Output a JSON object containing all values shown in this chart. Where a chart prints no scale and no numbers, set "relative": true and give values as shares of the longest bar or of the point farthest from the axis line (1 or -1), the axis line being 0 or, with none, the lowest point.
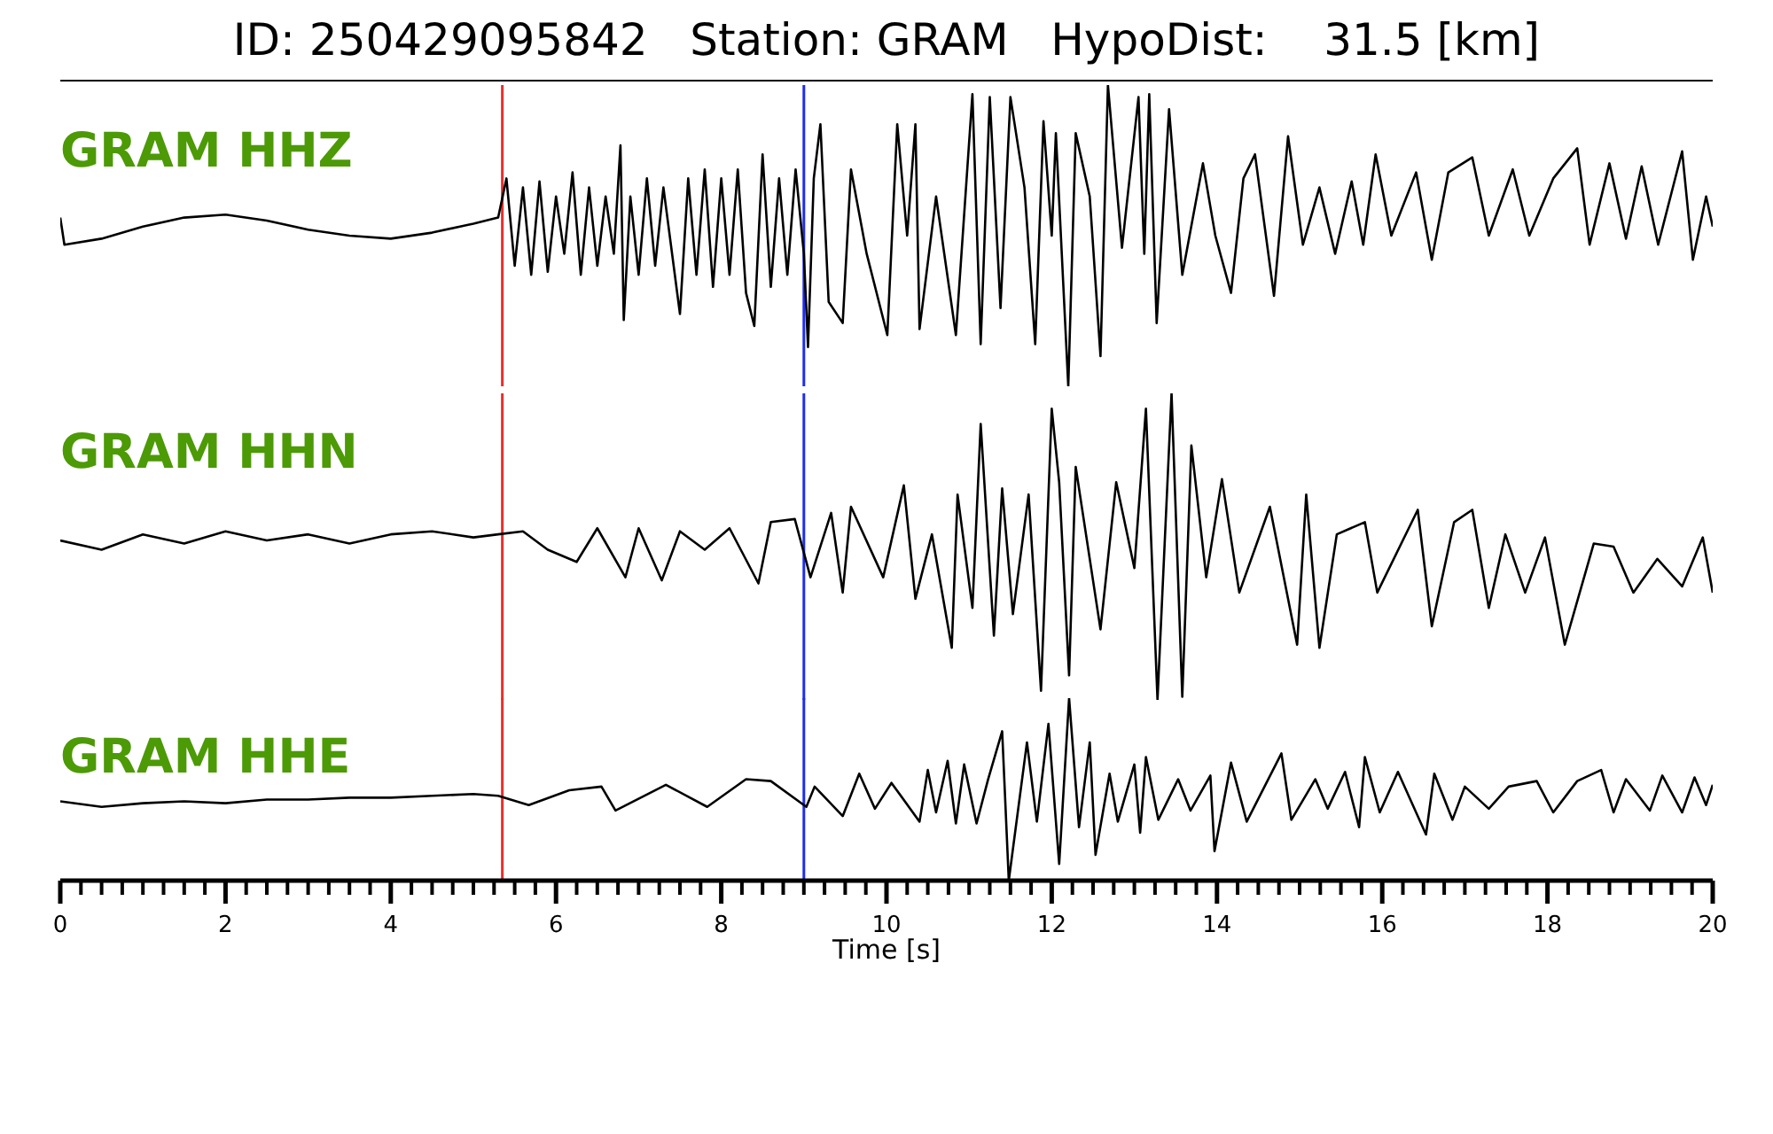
{
  "chart_data": [
    {
      "type": "line",
      "title": "ID: 250429095842   Station: GRAM   HypoDist:    31.5 [km]",
      "annotations": [
        "GRAM HHZ"
      ],
      "relative": true,
      "xlim": [
        0,
        20
      ],
      "tick_labels": false,
      "ref_lines": [
        {
          "axis": "x",
          "value": 5.35,
          "color": "#e8302a"
        },
        {
          "axis": "x",
          "value": 9.0,
          "color": "#1f2cf0"
        }
      ],
      "series": [
        {
          "color": "#000000",
          "x": [
            0,
            0.05,
            0.5,
            1,
            1.5,
            2,
            2.5,
            3,
            3.5,
            4,
            4.5,
            5,
            5.3,
            5.4,
            5.5,
            5.6,
            5.7,
            5.8,
            5.9,
            6.0,
            6.1,
            6.2,
            6.3,
            6.4,
            6.5,
            6.6,
            6.7,
            6.78,
            6.82,
            6.9,
            7.0,
            7.1,
            7.2,
            7.3,
            7.5,
            7.6,
            7.7,
            7.8,
            7.9,
            8.0,
            8.1,
            8.2,
            8.3,
            8.4,
            8.5,
            8.6,
            8.7,
            8.8,
            8.9,
            9.0,
            9.05,
            9.12,
            9.2,
            9.3,
            9.47,
            9.57,
            9.76,
            10.01,
            10.13,
            10.25,
            10.35,
            10.4,
            10.6,
            10.84,
            11.04,
            11.14,
            11.25,
            11.38,
            11.5,
            11.67,
            11.8,
            11.9,
            12.0,
            12.05,
            12.2,
            12.29,
            12.46,
            12.59,
            12.68,
            12.85,
            13.05,
            13.12,
            13.18,
            13.27,
            13.42,
            13.58,
            13.83,
            13.98,
            14.17,
            14.32,
            14.46,
            14.69,
            14.86,
            15.04,
            15.24,
            15.43,
            15.63,
            15.77,
            15.92,
            16.11,
            16.41,
            16.6,
            16.8,
            17.09,
            17.29,
            17.58,
            17.78,
            18.07,
            18.36,
            18.51,
            18.75,
            18.95,
            19.14,
            19.34,
            19.63,
            19.76,
            19.92,
            20.0
          ],
          "values": [
            0.56,
            0.47,
            0.49,
            0.53,
            0.56,
            0.57,
            0.55,
            0.52,
            0.5,
            0.49,
            0.51,
            0.54,
            0.56,
            0.69,
            0.4,
            0.66,
            0.37,
            0.68,
            0.38,
            0.63,
            0.44,
            0.71,
            0.37,
            0.66,
            0.4,
            0.63,
            0.44,
            0.8,
            0.22,
            0.63,
            0.37,
            0.69,
            0.4,
            0.66,
            0.24,
            0.69,
            0.37,
            0.72,
            0.33,
            0.69,
            0.37,
            0.72,
            0.31,
            0.2,
            0.77,
            0.33,
            0.69,
            0.37,
            0.72,
            0.44,
            0.13,
            0.69,
            0.87,
            0.28,
            0.21,
            0.72,
            0.44,
            0.17,
            0.87,
            0.5,
            0.87,
            0.19,
            0.63,
            0.17,
            0.97,
            0.14,
            0.96,
            0.26,
            0.96,
            0.66,
            0.14,
            0.88,
            0.5,
            0.84,
            0.0,
            0.84,
            0.63,
            0.1,
            1.0,
            0.46,
            0.96,
            0.44,
            0.97,
            0.21,
            0.92,
            0.37,
            0.74,
            0.5,
            0.31,
            0.69,
            0.77,
            0.3,
            0.83,
            0.47,
            0.66,
            0.44,
            0.68,
            0.47,
            0.77,
            0.5,
            0.71,
            0.42,
            0.71,
            0.76,
            0.5,
            0.72,
            0.5,
            0.69,
            0.79,
            0.47,
            0.74,
            0.49,
            0.73,
            0.47,
            0.78,
            0.42,
            0.63,
            0.53
          ]
        }
      ]
    },
    {
      "type": "line",
      "annotations": [
        "GRAM HHN"
      ],
      "relative": true,
      "xlim": [
        0,
        20
      ],
      "tick_labels": false,
      "ref_lines": [
        {
          "axis": "x",
          "value": 5.35,
          "color": "#e8302a"
        },
        {
          "axis": "x",
          "value": 9.0,
          "color": "#1f2cf0"
        }
      ],
      "series": [
        {
          "color": "#000000",
          "x": [
            0,
            0.5,
            1,
            1.5,
            2,
            2.5,
            3,
            3.5,
            4,
            4.5,
            5,
            5.3,
            5.6,
            5.9,
            6.25,
            6.5,
            6.84,
            7.0,
            7.28,
            7.5,
            7.8,
            8.1,
            8.45,
            8.6,
            8.89,
            9.08,
            9.33,
            9.47,
            9.57,
            9.96,
            10.21,
            10.35,
            10.55,
            10.79,
            10.86,
            11.04,
            11.14,
            11.3,
            11.4,
            11.53,
            11.72,
            11.87,
            12.0,
            12.09,
            12.21,
            12.29,
            12.59,
            12.78,
            13.0,
            13.14,
            13.28,
            13.45,
            13.58,
            13.69,
            13.87,
            14.06,
            14.27,
            14.64,
            14.97,
            15.08,
            15.24,
            15.45,
            15.79,
            15.94,
            16.43,
            16.6,
            16.87,
            17.09,
            17.29,
            17.49,
            17.73,
            17.97,
            18.21,
            18.56,
            18.8,
            19.04,
            19.33,
            19.63,
            19.88,
            20.0
          ],
          "values": [
            0.52,
            0.49,
            0.54,
            0.51,
            0.55,
            0.52,
            0.54,
            0.51,
            0.54,
            0.55,
            0.53,
            0.54,
            0.55,
            0.49,
            0.45,
            0.56,
            0.4,
            0.56,
            0.39,
            0.55,
            0.49,
            0.56,
            0.38,
            0.58,
            0.59,
            0.4,
            0.61,
            0.35,
            0.63,
            0.4,
            0.7,
            0.33,
            0.54,
            0.17,
            0.67,
            0.3,
            0.9,
            0.21,
            0.69,
            0.28,
            0.67,
            0.03,
            0.95,
            0.71,
            0.08,
            0.76,
            0.23,
            0.71,
            0.43,
            0.95,
            0.0,
            1.0,
            0.01,
            0.83,
            0.4,
            0.72,
            0.35,
            0.63,
            0.18,
            0.67,
            0.17,
            0.54,
            0.58,
            0.35,
            0.62,
            0.24,
            0.58,
            0.62,
            0.3,
            0.54,
            0.35,
            0.53,
            0.18,
            0.51,
            0.5,
            0.35,
            0.46,
            0.37,
            0.53,
            0.35
          ]
        }
      ]
    },
    {
      "type": "line",
      "annotations": [
        "GRAM HHE"
      ],
      "relative": true,
      "xlim": [
        0,
        20
      ],
      "xlabel": "Time [s]",
      "xticks": [
        0,
        {
          "value": 0.25,
          "label": null
        },
        {
          "value": 0.5,
          "label": null
        },
        {
          "value": 0.75,
          "label": null
        },
        {
          "value": 1,
          "label": null
        },
        {
          "value": 1.25,
          "label": null
        },
        {
          "value": 1.5,
          "label": null
        },
        {
          "value": 1.75,
          "label": null
        },
        2,
        {
          "value": 2.25,
          "label": null
        },
        {
          "value": 2.5,
          "label": null
        },
        {
          "value": 2.75,
          "label": null
        },
        {
          "value": 3,
          "label": null
        },
        {
          "value": 3.25,
          "label": null
        },
        {
          "value": 3.5,
          "label": null
        },
        {
          "value": 3.75,
          "label": null
        },
        4,
        {
          "value": 4.25,
          "label": null
        },
        {
          "value": 4.5,
          "label": null
        },
        {
          "value": 4.75,
          "label": null
        },
        {
          "value": 5,
          "label": null
        },
        {
          "value": 5.25,
          "label": null
        },
        {
          "value": 5.5,
          "label": null
        },
        {
          "value": 5.75,
          "label": null
        },
        6,
        {
          "value": 6.25,
          "label": null
        },
        {
          "value": 6.5,
          "label": null
        },
        {
          "value": 6.75,
          "label": null
        },
        {
          "value": 7,
          "label": null
        },
        {
          "value": 7.25,
          "label": null
        },
        {
          "value": 7.5,
          "label": null
        },
        {
          "value": 7.75,
          "label": null
        },
        8,
        {
          "value": 8.25,
          "label": null
        },
        {
          "value": 8.5,
          "label": null
        },
        {
          "value": 8.75,
          "label": null
        },
        {
          "value": 9,
          "label": null
        },
        {
          "value": 9.25,
          "label": null
        },
        {
          "value": 9.5,
          "label": null
        },
        {
          "value": 9.75,
          "label": null
        },
        10,
        {
          "value": 10.25,
          "label": null
        },
        {
          "value": 10.5,
          "label": null
        },
        {
          "value": 10.75,
          "label": null
        },
        {
          "value": 11,
          "label": null
        },
        {
          "value": 11.25,
          "label": null
        },
        {
          "value": 11.5,
          "label": null
        },
        {
          "value": 11.75,
          "label": null
        },
        12,
        {
          "value": 12.25,
          "label": null
        },
        {
          "value": 12.5,
          "label": null
        },
        {
          "value": 12.75,
          "label": null
        },
        {
          "value": 13,
          "label": null
        },
        {
          "value": 13.25,
          "label": null
        },
        {
          "value": 13.5,
          "label": null
        },
        {
          "value": 13.75,
          "label": null
        },
        14,
        {
          "value": 14.25,
          "label": null
        },
        {
          "value": 14.5,
          "label": null
        },
        {
          "value": 14.75,
          "label": null
        },
        {
          "value": 15,
          "label": null
        },
        {
          "value": 15.25,
          "label": null
        },
        {
          "value": 15.5,
          "label": null
        },
        {
          "value": 15.75,
          "label": null
        },
        16,
        {
          "value": 16.25,
          "label": null
        },
        {
          "value": 16.5,
          "label": null
        },
        {
          "value": 16.75,
          "label": null
        },
        {
          "value": 17,
          "label": null
        },
        {
          "value": 17.25,
          "label": null
        },
        {
          "value": 17.5,
          "label": null
        },
        {
          "value": 17.75,
          "label": null
        },
        18,
        {
          "value": 18.25,
          "label": null
        },
        {
          "value": 18.5,
          "label": null
        },
        {
          "value": 18.75,
          "label": null
        },
        {
          "value": 19,
          "label": null
        },
        {
          "value": 19.25,
          "label": null
        },
        {
          "value": 19.5,
          "label": null
        },
        {
          "value": 19.75,
          "label": null
        },
        20
      ],
      "ref_lines": [
        {
          "axis": "x",
          "value": 5.35,
          "color": "#e8302a"
        },
        {
          "axis": "x",
          "value": 9.0,
          "color": "#1f2cf0"
        }
      ],
      "series": [
        {
          "color": "#000000",
          "x": [
            0,
            0.5,
            1,
            1.5,
            2,
            2.5,
            3,
            3.5,
            4,
            4.5,
            5,
            5.3,
            5.67,
            6.16,
            6.55,
            6.72,
            7.33,
            7.83,
            8.3,
            8.6,
            9.03,
            9.13,
            9.47,
            9.67,
            9.86,
            10.06,
            10.4,
            10.5,
            10.6,
            10.74,
            10.84,
            10.94,
            11.09,
            11.23,
            11.4,
            11.48,
            11.7,
            11.82,
            11.96,
            12.09,
            12.21,
            12.33,
            12.46,
            12.53,
            12.7,
            12.8,
            13.0,
            13.07,
            13.14,
            13.29,
            13.53,
            13.68,
            13.92,
            13.97,
            14.17,
            14.36,
            14.78,
            14.9,
            15.19,
            15.34,
            15.55,
            15.72,
            15.79,
            15.97,
            16.19,
            16.53,
            16.63,
            16.85,
            17.0,
            17.29,
            17.53,
            17.87,
            18.07,
            18.36,
            18.65,
            18.8,
            18.95,
            19.24,
            19.39,
            19.63,
            19.78,
            19.92,
            20.0
          ],
          "values": [
            0.44,
            0.41,
            0.43,
            0.44,
            0.43,
            0.45,
            0.45,
            0.46,
            0.46,
            0.47,
            0.48,
            0.47,
            0.42,
            0.5,
            0.52,
            0.39,
            0.53,
            0.41,
            0.56,
            0.55,
            0.41,
            0.52,
            0.36,
            0.59,
            0.4,
            0.54,
            0.33,
            0.61,
            0.38,
            0.66,
            0.32,
            0.64,
            0.32,
            0.56,
            0.82,
            0.01,
            0.76,
            0.33,
            0.86,
            0.1,
            1.0,
            0.3,
            0.76,
            0.15,
            0.59,
            0.33,
            0.64,
            0.27,
            0.68,
            0.34,
            0.56,
            0.39,
            0.58,
            0.17,
            0.65,
            0.33,
            0.7,
            0.34,
            0.56,
            0.4,
            0.6,
            0.3,
            0.68,
            0.38,
            0.6,
            0.26,
            0.59,
            0.34,
            0.52,
            0.4,
            0.52,
            0.55,
            0.38,
            0.55,
            0.61,
            0.38,
            0.56,
            0.39,
            0.58,
            0.38,
            0.57,
            0.42,
            0.53
          ]
        }
      ]
    }
  ]
}
